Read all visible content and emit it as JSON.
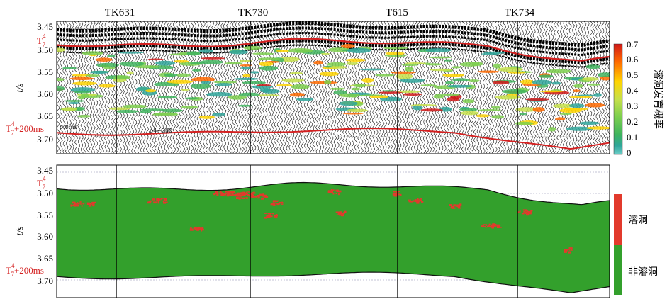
{
  "wells": [
    "TK631",
    "TK730",
    "T615",
    "TK734"
  ],
  "top_panel": {
    "y_axis_title": "t/s",
    "y_ticks": [
      "3.45",
      "3.50",
      "3.55",
      "3.60",
      "3.65",
      "3.70"
    ],
    "horizon_top": {
      "base": "T",
      "sup": "4",
      "sub": "7"
    },
    "horizon_bottom": {
      "base": "T",
      "sup": "4",
      "sub": "7",
      "suffix": "+200ms"
    },
    "annotations": [
      "0.0ms",
      "p4+200"
    ],
    "colorbar": {
      "title": "溶洞发育概率",
      "ticks": [
        "0.7",
        "0.6",
        "0.5",
        "0.4",
        "0.3",
        "0.2",
        "0.1",
        "0"
      ],
      "colors": [
        "#d01818",
        "#ff6a00",
        "#ffd400",
        "#c6e04a",
        "#7ccf4e",
        "#3fb45e",
        "#2fa59a",
        "#6ccfc9"
      ]
    }
  },
  "bottom_panel": {
    "y_axis_title": "t/s",
    "y_ticks": [
      "3.45",
      "3.50",
      "3.55",
      "3.60",
      "3.65",
      "3.70"
    ],
    "horizon_top": {
      "base": "T",
      "sup": "4",
      "sub": "7"
    },
    "horizon_bottom": {
      "base": "T",
      "sup": "4",
      "sub": "7",
      "suffix": "+200ms"
    },
    "legend": [
      {
        "label": "溶洞",
        "color": "#e23a2c"
      },
      {
        "label": "非溶洞",
        "color": "#33a02c"
      }
    ]
  }
}
